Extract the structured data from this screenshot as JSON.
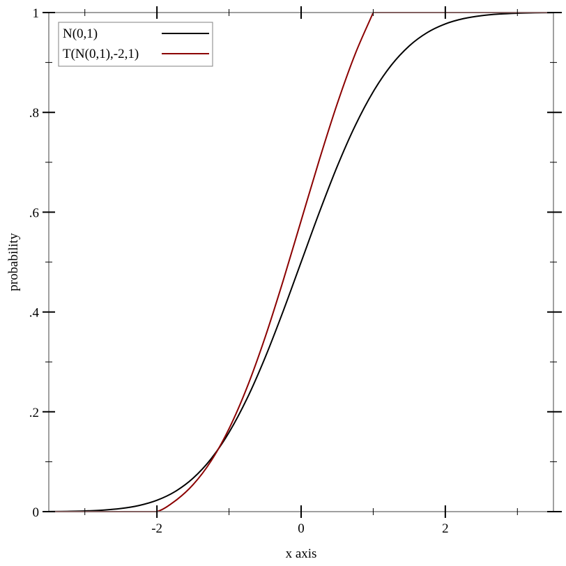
{
  "chart_data": {
    "type": "line",
    "title": "",
    "xlabel": "x axis",
    "ylabel": "probability",
    "xlim": [
      -3.5,
      3.5
    ],
    "ylim": [
      0,
      1
    ],
    "x_ticks": [
      {
        "value": -2,
        "label": "-2"
      },
      {
        "value": 0,
        "label": "0"
      },
      {
        "value": 2,
        "label": "2"
      }
    ],
    "x_minor_ticks": [
      -3,
      -1,
      1,
      3
    ],
    "y_ticks": [
      {
        "value": 0,
        "label": "0"
      },
      {
        "value": 0.2,
        "label": ".2"
      },
      {
        "value": 0.4,
        "label": ".4"
      },
      {
        "value": 0.6,
        "label": ".6"
      },
      {
        "value": 0.8,
        "label": ".8"
      },
      {
        "value": 1,
        "label": "1"
      }
    ],
    "y_minor_ticks": [
      0.1,
      0.3,
      0.5,
      0.7,
      0.9
    ],
    "grid": false,
    "legend_position": "top-left",
    "x": [
      -3.5,
      -3.25,
      -3,
      -2.75,
      -2.5,
      -2.25,
      -2,
      -1.75,
      -1.5,
      -1.25,
      -1,
      -0.75,
      -0.5,
      -0.25,
      0,
      0.25,
      0.5,
      0.75,
      1,
      1.25,
      1.5,
      1.75,
      2,
      2.25,
      2.5,
      2.75,
      3,
      3.25,
      3.5
    ],
    "series": [
      {
        "name": "N(0,1)",
        "color": "#000000",
        "values": [
          0.00023,
          0.00058,
          0.00135,
          0.00298,
          0.00621,
          0.01222,
          0.02275,
          0.04006,
          0.06681,
          0.10565,
          0.15866,
          0.22663,
          0.30854,
          0.40129,
          0.5,
          0.59871,
          0.69146,
          0.77337,
          0.84134,
          0.89435,
          0.93319,
          0.95994,
          0.97725,
          0.98778,
          0.99379,
          0.99702,
          0.99865,
          0.99942,
          0.99977
        ]
      },
      {
        "name": "T(N(0,1),-2,1)",
        "color": "#8b0000",
        "values": [
          0,
          0,
          0,
          0,
          0,
          0,
          0,
          0.02115,
          0.05382,
          0.10127,
          0.16603,
          0.24906,
          0.34913,
          0.46243,
          0.58302,
          0.70361,
          0.8169,
          0.91697,
          1,
          1,
          1,
          1,
          1,
          1,
          1,
          1,
          1,
          1,
          1
        ]
      }
    ]
  }
}
